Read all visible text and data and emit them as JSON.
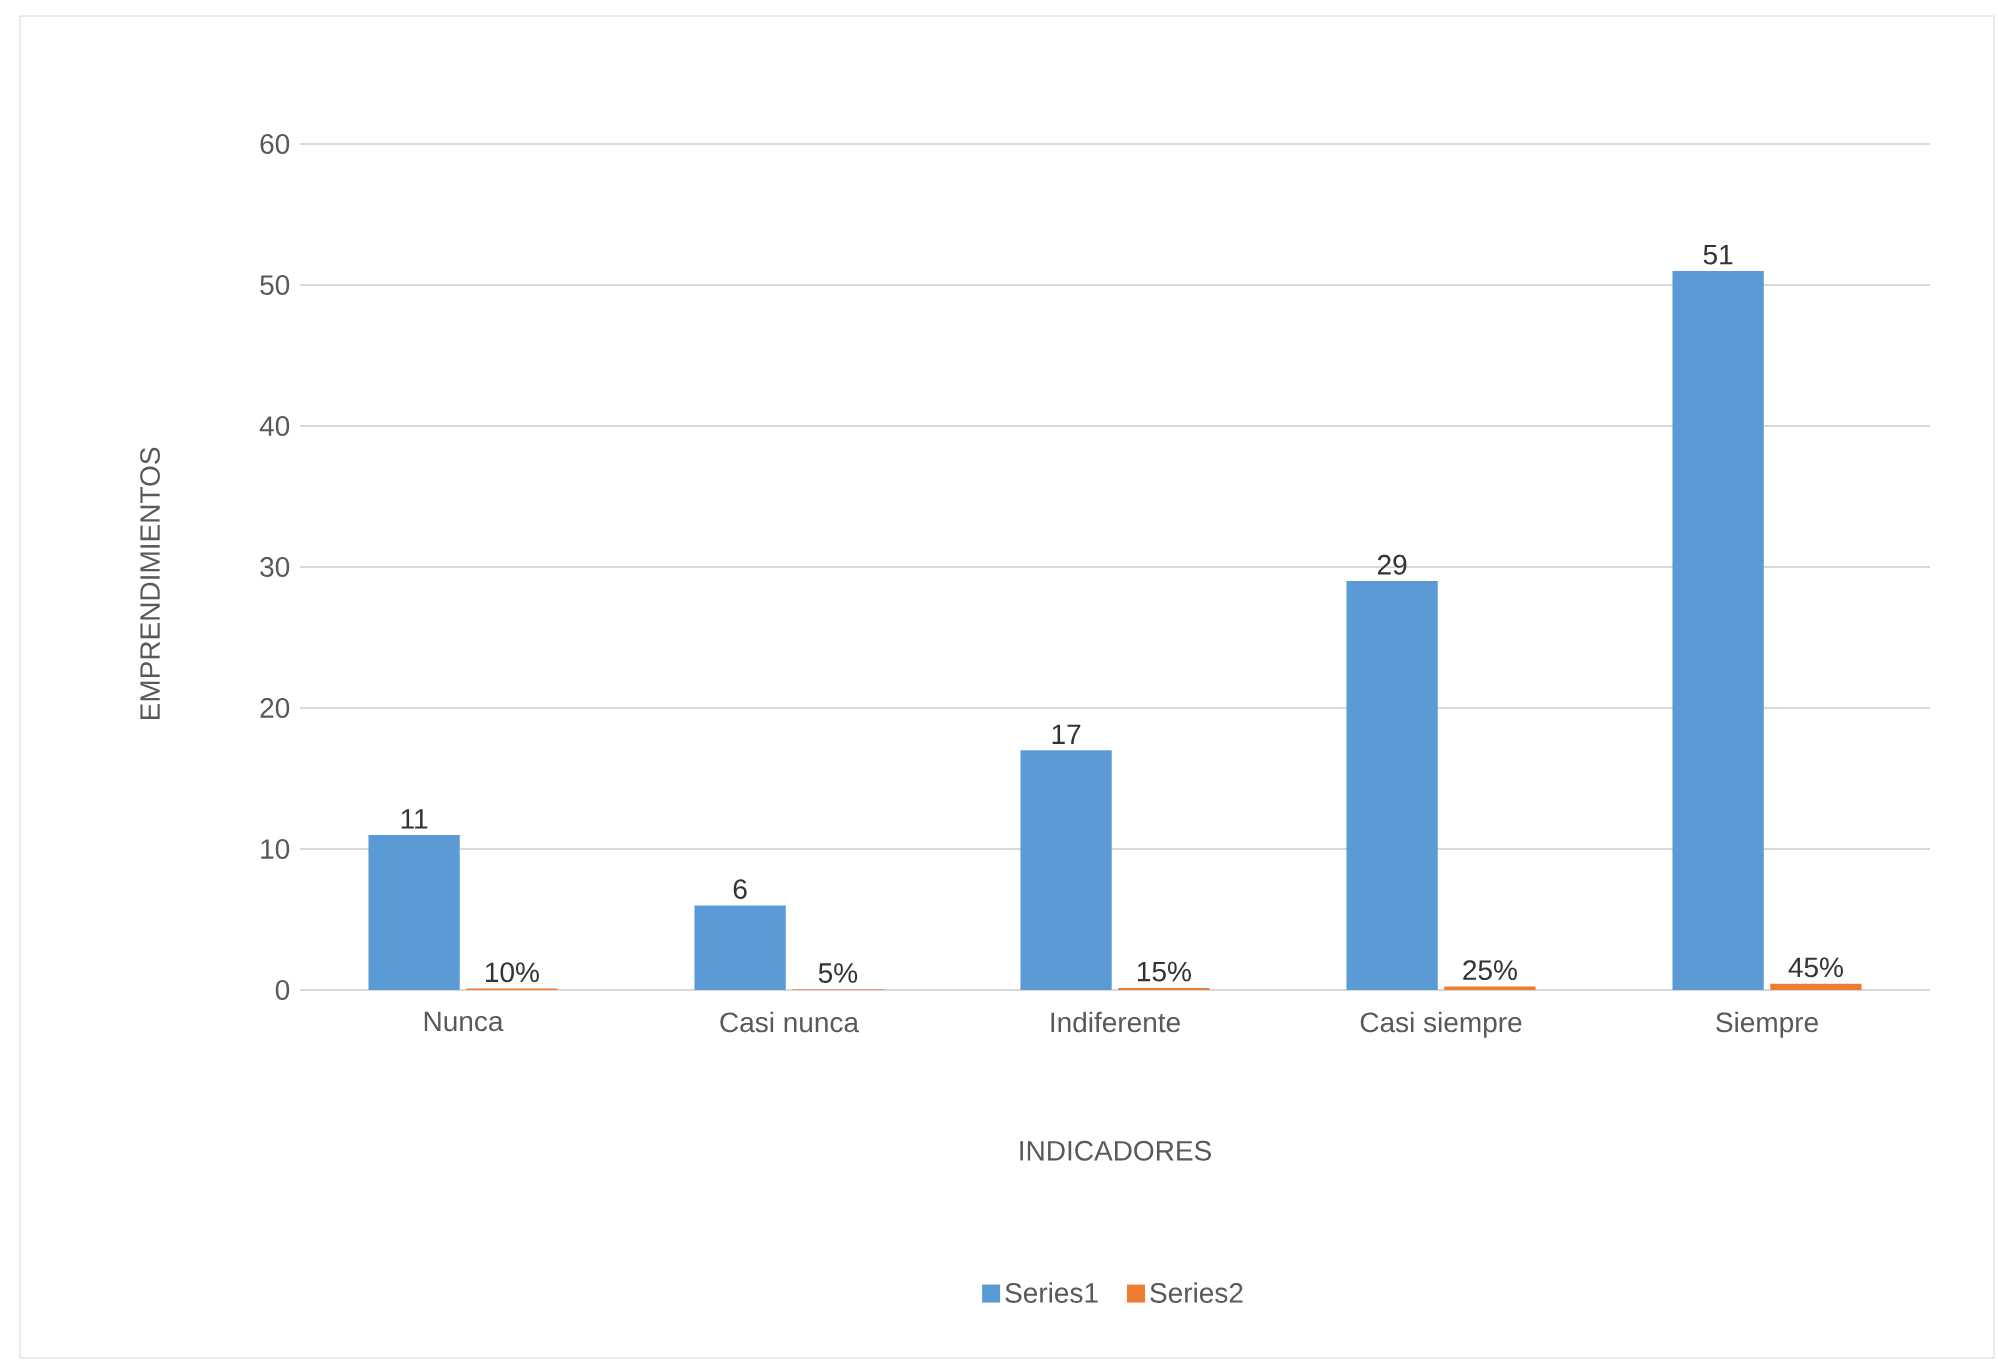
{
  "chart_data": {
    "type": "bar",
    "xlabel": "INDICADORES",
    "ylabel": "EMPRENDIMIENTOS",
    "categories": [
      "Nunca",
      "Casi nunca",
      "Indiferente",
      "Casi siempre",
      "Siempre"
    ],
    "series": [
      {
        "name": "Series1",
        "color": "#5b9bd5",
        "values": [
          11,
          6,
          17,
          29,
          51
        ],
        "value_labels": [
          "11",
          "6",
          "17",
          "29",
          "51"
        ]
      },
      {
        "name": "Series2",
        "color": "#ed7d31",
        "values": [
          0.1,
          0.05,
          0.15,
          0.25,
          0.45
        ],
        "value_labels": [
          "10%",
          "5%",
          "15%",
          "25%",
          "45%"
        ]
      }
    ],
    "ylim": [
      0,
      60
    ],
    "yticks": [
      0,
      10,
      20,
      30,
      40,
      50,
      60
    ],
    "grid": "y",
    "legend": "bottom"
  }
}
